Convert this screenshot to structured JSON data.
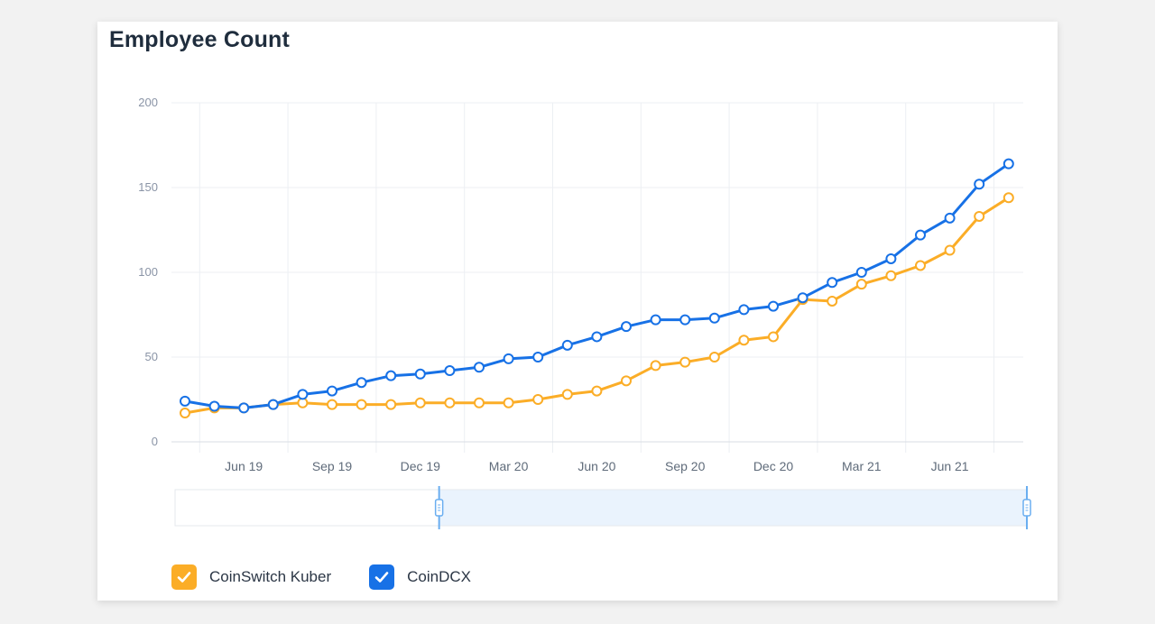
{
  "title": "Employee Count",
  "chart_data": {
    "type": "line",
    "x": [
      "Apr 19",
      "May 19",
      "Jun 19",
      "Jul 19",
      "Aug 19",
      "Sep 19",
      "Oct 19",
      "Nov 19",
      "Dec 19",
      "Jan 20",
      "Feb 20",
      "Mar 20",
      "Apr 20",
      "May 20",
      "Jun 20",
      "Jul 20",
      "Aug 20",
      "Sep 20",
      "Oct 20",
      "Nov 20",
      "Dec 20",
      "Jan 21",
      "Feb 21",
      "Mar 21",
      "Apr 21",
      "May 21",
      "Jun 21",
      "Jul 21",
      "Aug 21"
    ],
    "series": [
      {
        "name": "CoinSwitch Kuber",
        "color": "#fbad27",
        "values": [
          17,
          20,
          20,
          22,
          23,
          22,
          22,
          22,
          23,
          23,
          23,
          23,
          25,
          28,
          30,
          36,
          45,
          47,
          50,
          60,
          62,
          84,
          83,
          93,
          98,
          104,
          113,
          133,
          144
        ]
      },
      {
        "name": "CoinDCX",
        "color": "#1771e6",
        "values": [
          24,
          21,
          20,
          22,
          28,
          30,
          35,
          39,
          40,
          42,
          44,
          49,
          50,
          57,
          62,
          68,
          72,
          72,
          73,
          78,
          80,
          85,
          94,
          100,
          108,
          122,
          132,
          152,
          164
        ]
      }
    ],
    "x_ticks": [
      "Jun 19",
      "Sep 19",
      "Dec 19",
      "Mar 20",
      "Jun 20",
      "Sep 20",
      "Dec 20",
      "Mar 21",
      "Jun 21"
    ],
    "y_ticks": [
      "0",
      "50",
      "100",
      "150",
      "200"
    ],
    "ylim": [
      0,
      200
    ],
    "grid": true,
    "legend": "bottom-left",
    "range_slider": {
      "start_fraction": 0.31,
      "end_fraction": 1.0
    }
  }
}
